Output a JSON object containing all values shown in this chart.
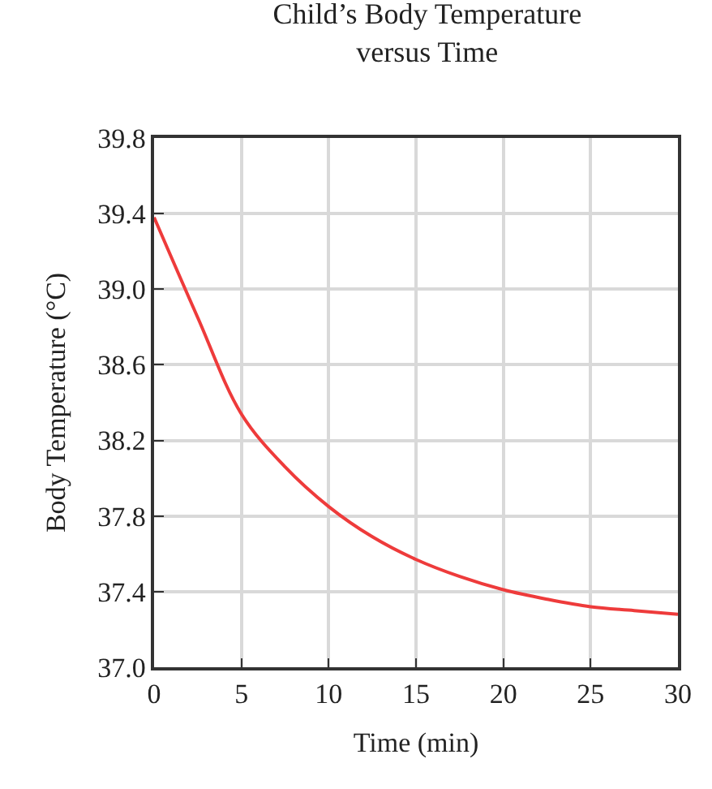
{
  "chart_data": {
    "type": "line",
    "title": "Child’s Body Temperature\nversus Time",
    "xlabel": "Time (min)",
    "ylabel": "Body Temperature (°C)",
    "x": [
      0,
      2.5,
      5,
      7.5,
      10,
      12.5,
      15,
      17.5,
      20,
      22.5,
      25,
      27.5,
      30
    ],
    "series": [
      {
        "color": "#ee3b3b",
        "values": [
          39.38,
          38.85,
          38.34,
          38.06,
          37.85,
          37.69,
          37.57,
          37.48,
          37.41,
          37.36,
          37.32,
          37.3,
          37.28
        ]
      }
    ],
    "xlim": [
      0,
      30
    ],
    "xticks": [
      0,
      5,
      10,
      15,
      20,
      25,
      30
    ],
    "ylim": [
      37.0,
      39.8
    ],
    "yticks": [
      {
        "value": 37.0,
        "label": "37.0"
      },
      {
        "value": 37.4,
        "label": "37.4"
      },
      {
        "value": 37.8,
        "label": "37.8"
      },
      {
        "value": 38.2,
        "label": "38.2"
      },
      {
        "value": 38.6,
        "label": "38.6"
      },
      {
        "value": 39.0,
        "label": "39.0"
      },
      {
        "value": 39.4,
        "label": "39.4"
      },
      {
        "value": 39.8,
        "label": "39.8"
      }
    ],
    "grid": true,
    "legend": false,
    "marker": "none",
    "line_style": "solid"
  }
}
